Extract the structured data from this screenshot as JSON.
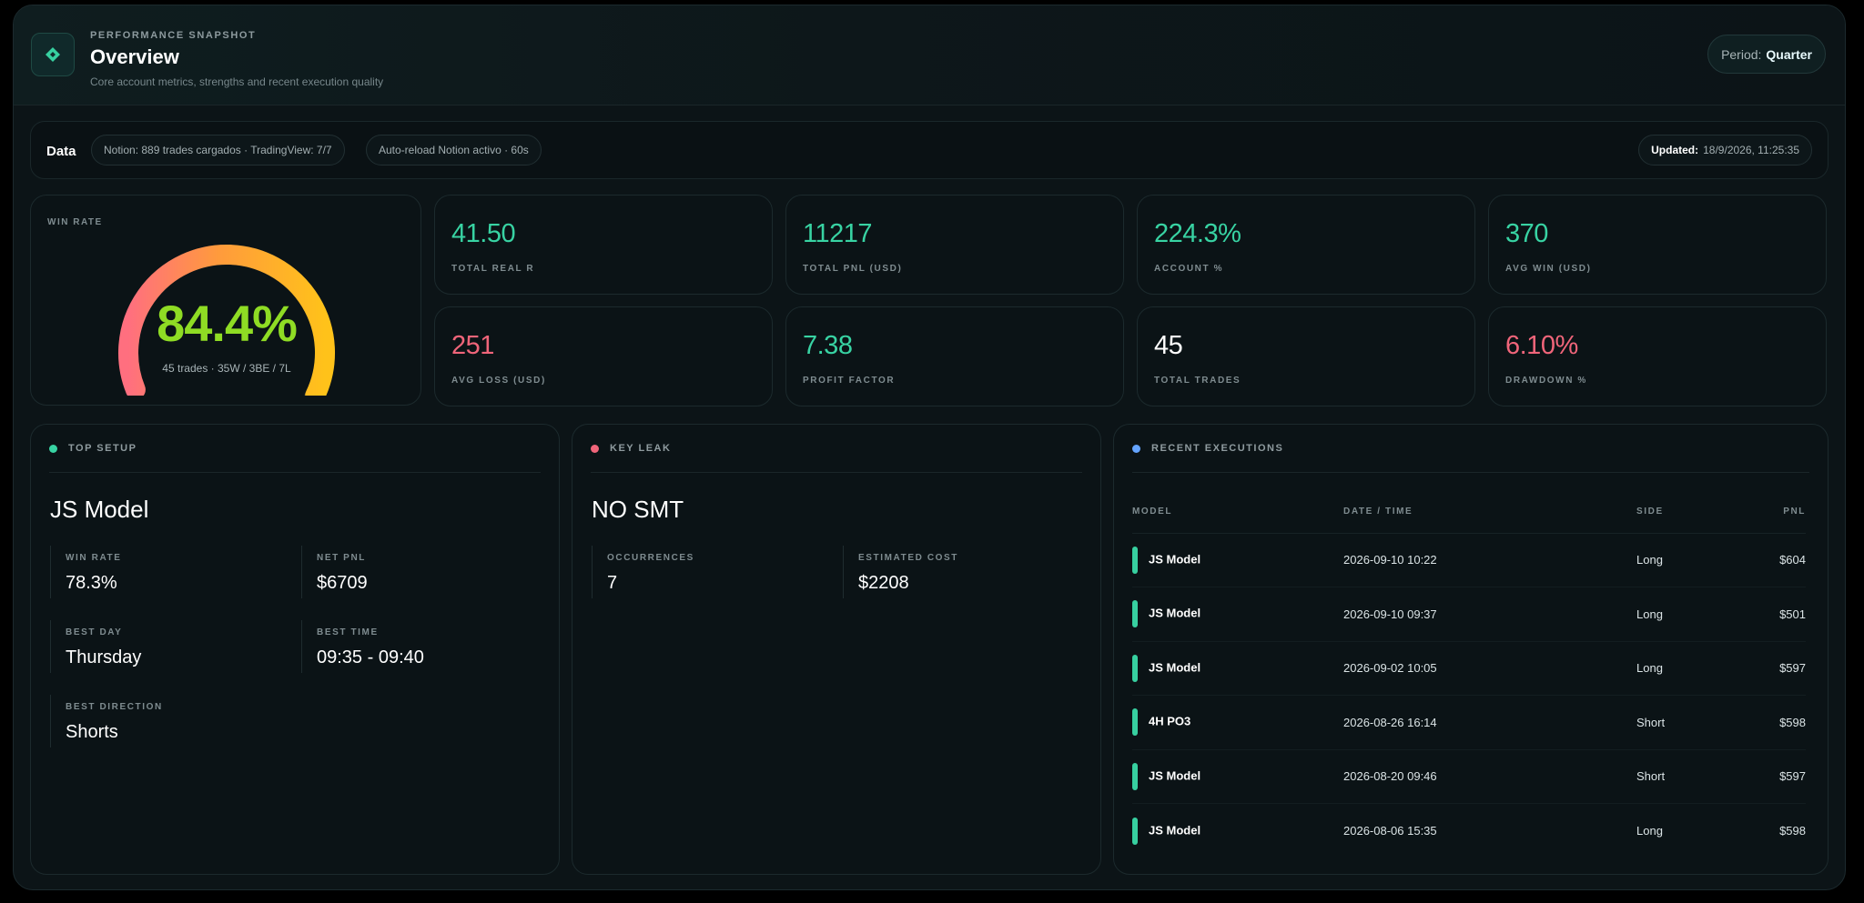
{
  "header": {
    "eyebrow": "PERFORMANCE SNAPSHOT",
    "title": "Overview",
    "subtitle": "Core account metrics, strengths and recent execution quality",
    "period_label": "Period:",
    "period_value": "Quarter"
  },
  "databar": {
    "label": "Data",
    "chip1": "Notion: 889 trades cargados · TradingView: 7/7",
    "chip2": "Auto-reload Notion activo · 60s",
    "updated_label": "Updated:",
    "updated_value": "18/9/2026, 11:25:35"
  },
  "winrate": {
    "label": "WIN RATE",
    "value": "84.4%",
    "fill_fraction": 0.844,
    "sub": "45 trades · 35W / 3BE / 7L"
  },
  "metrics": [
    {
      "value": "41.50",
      "label": "TOTAL REAL R",
      "tone": "green"
    },
    {
      "value": "11217",
      "label": "TOTAL PNL (USD)",
      "tone": "green"
    },
    {
      "value": "224.3%",
      "label": "ACCOUNT %",
      "tone": "green"
    },
    {
      "value": "370",
      "label": "AVG WIN (USD)",
      "tone": "green"
    },
    {
      "value": "251",
      "label": "AVG LOSS (USD)",
      "tone": "red"
    },
    {
      "value": "7.38",
      "label": "PROFIT FACTOR",
      "tone": "green"
    },
    {
      "value": "45",
      "label": "TOTAL TRADES",
      "tone": "white"
    },
    {
      "value": "6.10%",
      "label": "DRAWDOWN %",
      "tone": "red"
    }
  ],
  "top_setup": {
    "label": "TOP SETUP",
    "name": "JS Model",
    "win_rate_label": "WIN RATE",
    "win_rate": "78.3%",
    "net_pnl_label": "NET PNL",
    "net_pnl": "$6709",
    "best_day_label": "BEST DAY",
    "best_day": "Thursday",
    "best_time_label": "BEST TIME",
    "best_time": "09:35 - 09:40",
    "best_direction_label": "BEST DIRECTION",
    "best_direction": "Shorts"
  },
  "key_leak": {
    "label": "KEY LEAK",
    "name": "NO SMT",
    "occurrences_label": "OCCURRENCES",
    "occurrences": "7",
    "cost_label": "ESTIMATED COST",
    "cost": "$2208"
  },
  "executions": {
    "label": "RECENT EXECUTIONS",
    "columns": [
      "MODEL",
      "DATE / TIME",
      "SIDE",
      "PNL"
    ],
    "rows": [
      {
        "model": "JS Model",
        "datetime": "2026-09-10 10:22",
        "side": "Long",
        "pnl": "$604"
      },
      {
        "model": "JS Model",
        "datetime": "2026-09-10 09:37",
        "side": "Long",
        "pnl": "$501"
      },
      {
        "model": "JS Model",
        "datetime": "2026-09-02 10:05",
        "side": "Long",
        "pnl": "$597"
      },
      {
        "model": "4H PO3",
        "datetime": "2026-08-26 16:14",
        "side": "Short",
        "pnl": "$598"
      },
      {
        "model": "JS Model",
        "datetime": "2026-08-20 09:46",
        "side": "Short",
        "pnl": "$597"
      },
      {
        "model": "JS Model",
        "datetime": "2026-08-06 15:35",
        "side": "Long",
        "pnl": "$598"
      }
    ]
  },
  "colors": {
    "accent": "#38d3a3",
    "negative": "#f0657a",
    "gauge_start": "#ff6f7f",
    "gauge_mid": "#ff9a3d",
    "gauge_end": "#ffc21a",
    "info_dot": "#64a4ff"
  }
}
